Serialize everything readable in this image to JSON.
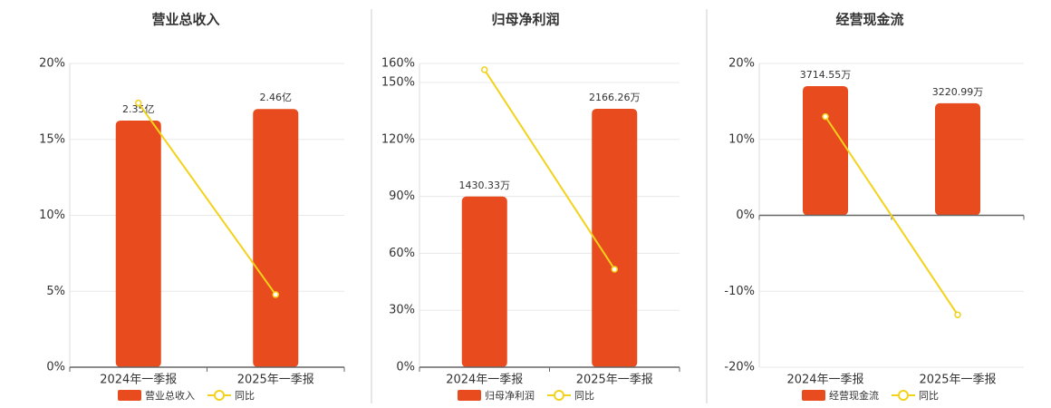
{
  "chart_data": [
    {
      "type": "combo",
      "title": "营业总收入",
      "categories": [
        "2024年一季报",
        "2025年一季报"
      ],
      "series": [
        {
          "name": "营业总收入",
          "type": "bar",
          "color": "#e84c1e",
          "axis": "y2",
          "values": [
            2.35,
            2.46
          ],
          "value_labels": [
            "2.35亿",
            "2.46亿"
          ]
        },
        {
          "name": "同比",
          "type": "line",
          "color": "#f2d21b",
          "values": [
            17.4,
            4.78
          ]
        }
      ],
      "ylim": [
        0,
        20
      ],
      "yticks": [
        {
          "value": 0,
          "label": "0%"
        },
        {
          "value": 5,
          "label": "5%"
        },
        {
          "value": 10,
          "label": "10%"
        },
        {
          "value": 15,
          "label": "15%"
        },
        {
          "value": 20,
          "label": "20%"
        }
      ],
      "y2lim": [
        0,
        2.894
      ],
      "grid": true,
      "legend": "bottom"
    },
    {
      "type": "combo",
      "title": "归母净利润",
      "categories": [
        "2024年一季报",
        "2025年一季报"
      ],
      "series": [
        {
          "name": "归母净利润",
          "type": "bar",
          "color": "#e84c1e",
          "axis": "y2",
          "values": [
            1430.33,
            2166.26
          ],
          "value_labels": [
            "1430.33万",
            "2166.26万"
          ]
        },
        {
          "name": "同比",
          "type": "line",
          "color": "#f2d21b",
          "values": [
            156.7,
            51.6
          ]
        }
      ],
      "ylim": [
        0,
        160
      ],
      "yticks": [
        {
          "value": 0,
          "label": "0%"
        },
        {
          "value": 30,
          "label": "30%"
        },
        {
          "value": 60,
          "label": "60%"
        },
        {
          "value": 90,
          "label": "90%"
        },
        {
          "value": 120,
          "label": "120%"
        },
        {
          "value": 150,
          "label": "150%"
        },
        {
          "value": 160,
          "label": "160%"
        }
      ],
      "y2lim": [
        0,
        2546
      ],
      "grid": true,
      "legend": "bottom"
    },
    {
      "type": "combo",
      "title": "经营现金流",
      "categories": [
        "2024年一季报",
        "2025年一季报"
      ],
      "series": [
        {
          "name": "经营现金流",
          "type": "bar",
          "color": "#e84c1e",
          "axis": "y2",
          "values": [
            3714.55,
            3220.99
          ],
          "value_labels": [
            "3714.55万",
            "3220.99万"
          ]
        },
        {
          "name": "同比",
          "type": "line",
          "color": "#f2d21b",
          "values": [
            13.0,
            -13.1
          ]
        }
      ],
      "ylim": [
        -20,
        20
      ],
      "yticks": [
        {
          "value": -20,
          "label": "-20%"
        },
        {
          "value": -10,
          "label": "-10%"
        },
        {
          "value": 0,
          "label": "0%"
        },
        {
          "value": 10,
          "label": "10%"
        },
        {
          "value": 20,
          "label": "20%"
        }
      ],
      "y2lim": [
        -4365,
        4365
      ],
      "grid": true,
      "legend": "bottom"
    }
  ]
}
